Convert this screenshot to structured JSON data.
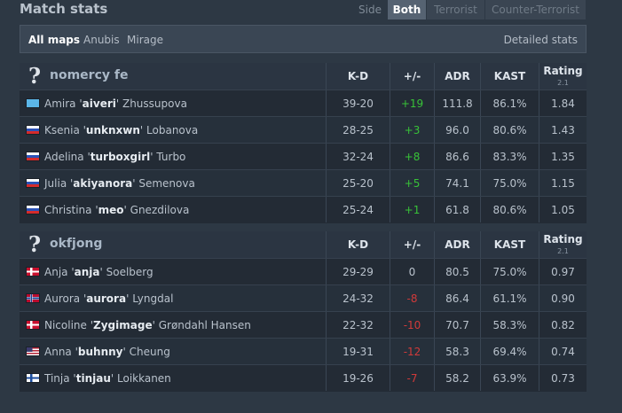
{
  "header": {
    "title": "Match stats",
    "side_label": "Side",
    "side_options": [
      "Both",
      "Terrorist",
      "Counter-Terrorist"
    ],
    "side_selected": "Both"
  },
  "maps": {
    "items": [
      "All maps",
      "Anubis",
      "Mirage"
    ],
    "selected": "All maps",
    "detailed_link": "Detailed stats"
  },
  "columns": {
    "kd": "K-D",
    "pm": "+/-",
    "adr": "ADR",
    "kast": "KAST",
    "rating": "Rating",
    "rating_version": "2.1"
  },
  "teams": [
    {
      "name": "nomercy fe",
      "logo_icon": "question-mark-icon",
      "players": [
        {
          "first": "Amira",
          "nick": "aiveri",
          "last": "Zhussupova",
          "flag": "kz",
          "kd": "39-20",
          "pm": "+19",
          "pm_sign": "pos",
          "adr": "111.8",
          "kast": "86.1%",
          "rating": "1.84"
        },
        {
          "first": "Ksenia",
          "nick": "unknxwn",
          "last": "Lobanova",
          "flag": "ru",
          "kd": "28-25",
          "pm": "+3",
          "pm_sign": "pos",
          "adr": "96.0",
          "kast": "80.6%",
          "rating": "1.43"
        },
        {
          "first": "Adelina",
          "nick": "turboxgirl",
          "last": "Turbo",
          "flag": "ru",
          "kd": "32-24",
          "pm": "+8",
          "pm_sign": "pos",
          "adr": "86.6",
          "kast": "83.3%",
          "rating": "1.35"
        },
        {
          "first": "Julia",
          "nick": "akiyanora",
          "last": "Semenova",
          "flag": "ru",
          "kd": "25-20",
          "pm": "+5",
          "pm_sign": "pos",
          "adr": "74.1",
          "kast": "75.0%",
          "rating": "1.15"
        },
        {
          "first": "Christina",
          "nick": "meo",
          "last": "Gnezdilova",
          "flag": "ru",
          "kd": "25-24",
          "pm": "+1",
          "pm_sign": "pos",
          "adr": "61.8",
          "kast": "80.6%",
          "rating": "1.05"
        }
      ]
    },
    {
      "name": "okfjong",
      "logo_icon": "question-mark-icon",
      "players": [
        {
          "first": "Anja",
          "nick": "anja",
          "last": "Soelberg",
          "flag": "dk",
          "kd": "29-29",
          "pm": "0",
          "pm_sign": "zero",
          "adr": "80.5",
          "kast": "75.0%",
          "rating": "0.97"
        },
        {
          "first": "Aurora",
          "nick": "aurora",
          "last": "Lyngdal",
          "flag": "no",
          "kd": "24-32",
          "pm": "-8",
          "pm_sign": "neg",
          "adr": "86.4",
          "kast": "61.1%",
          "rating": "0.90"
        },
        {
          "first": "Nicoline",
          "nick": "Zygimage",
          "last": "Grøndahl Hansen",
          "flag": "dk",
          "kd": "22-32",
          "pm": "-10",
          "pm_sign": "neg",
          "adr": "70.7",
          "kast": "58.3%",
          "rating": "0.82"
        },
        {
          "first": "Anna",
          "nick": "buhnny",
          "last": "Cheung",
          "flag": "us",
          "kd": "19-31",
          "pm": "-12",
          "pm_sign": "neg",
          "adr": "58.3",
          "kast": "69.4%",
          "rating": "0.74"
        },
        {
          "first": "Tinja",
          "nick": "tinjau",
          "last": "Loikkanen",
          "flag": "fi",
          "kd": "19-26",
          "pm": "-7",
          "pm_sign": "neg",
          "adr": "58.2",
          "kast": "63.9%",
          "rating": "0.73"
        }
      ]
    }
  ]
}
